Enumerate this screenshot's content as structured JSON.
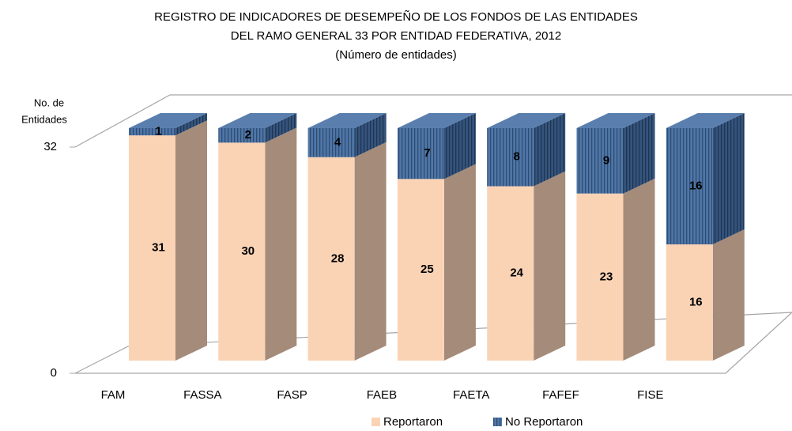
{
  "chart_data": {
    "type": "bar3d_stacked",
    "title": [
      "REGISTRO DE INDICADORES DE DESEMPEÑO DE LOS FONDOS DE LAS ENTIDADES",
      "DEL RAMO GENERAL 33 POR ENTIDAD FEDERATIVA, 2012"
    ],
    "subtitle": "(Número de entidades)",
    "y_label": [
      "No. de",
      "Entidades"
    ],
    "categories": [
      "FAM",
      "FASSA",
      "FASP",
      "FAEB",
      "FAETA",
      "FAFEF",
      "FISE"
    ],
    "series": [
      {
        "name": "Reportaron",
        "color": "#fad3b5",
        "values": [
          31,
          30,
          28,
          25,
          24,
          23,
          16
        ]
      },
      {
        "name": "No Reportaron",
        "color": "#4f76a6",
        "values": [
          1,
          2,
          4,
          7,
          8,
          9,
          16
        ]
      }
    ],
    "ylim": [
      0,
      32
    ],
    "yticks": [
      0,
      32
    ],
    "legend": "bottom"
  }
}
